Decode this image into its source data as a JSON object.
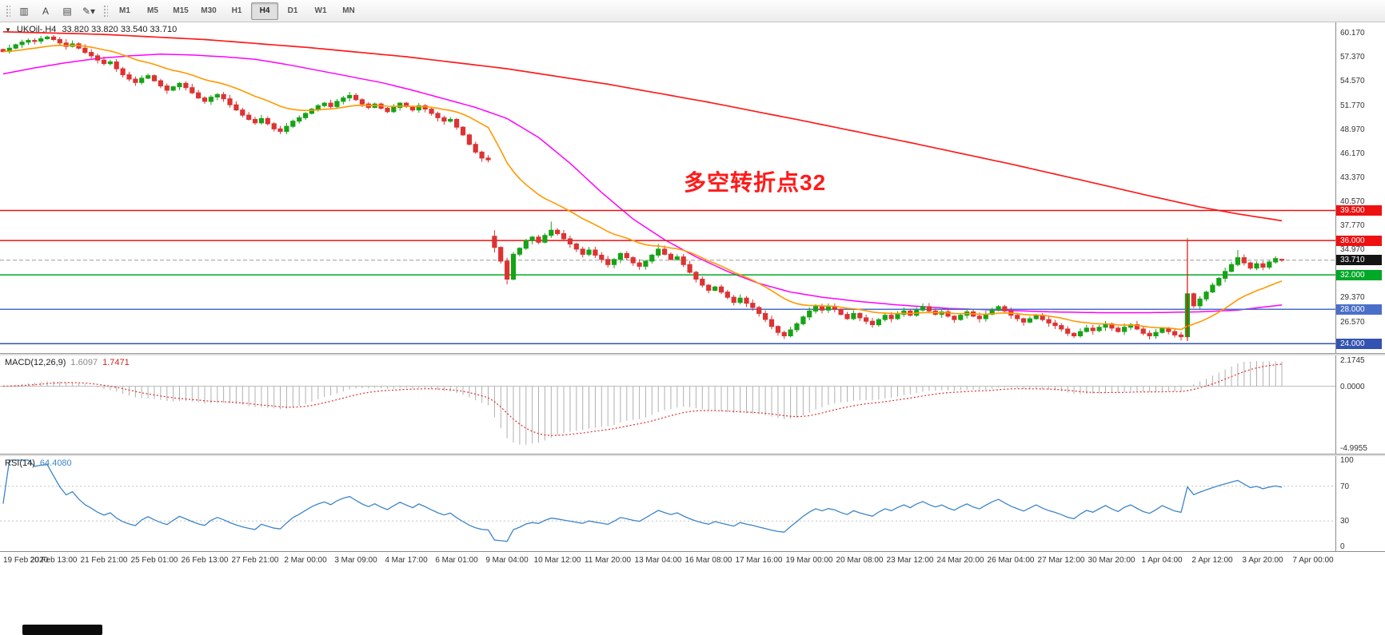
{
  "toolbar": {
    "tools": [
      {
        "name": "chart-window-icon",
        "glyph": "▥"
      },
      {
        "name": "text-tool",
        "glyph": "A"
      },
      {
        "name": "label-tool",
        "glyph": "▤"
      },
      {
        "name": "draw-tools-dropdown",
        "glyph": "✎▾"
      }
    ],
    "timeframes": [
      "M1",
      "M5",
      "M15",
      "M30",
      "H1",
      "H4",
      "D1",
      "W1",
      "MN"
    ],
    "active_timeframe": "H4"
  },
  "chart_header": {
    "collapse_glyph": "▼",
    "title": "UKOil-,H4",
    "ohlc": "33.820 33.820 33.540 33.710"
  },
  "annotation": {
    "text": "多空转折点32",
    "color": "#ff1a1a",
    "bar": 108,
    "price": 44.8
  },
  "macd_label": {
    "name": "MACD(12,26,9)",
    "value": "1.6097",
    "signal": "1.7471"
  },
  "rsi_label": {
    "name": "RSI(14)",
    "value": "64.4080"
  },
  "chart_data": {
    "type": "candlestick",
    "symbol": "UKOil-",
    "timeframe": "H4",
    "title": "UKOil-,H4",
    "ohlc_display": {
      "open": "33.820",
      "high": "33.820",
      "low": "33.540",
      "close": "33.710"
    },
    "ylim": [
      22.9,
      61.4
    ],
    "slots": 212,
    "label_every": 8,
    "colors": {
      "up": "#17a317",
      "down": "#dd3333"
    },
    "y_ticks": [
      "60.170",
      "57.370",
      "54.570",
      "51.770",
      "48.970",
      "46.170",
      "43.370",
      "40.570",
      "37.770",
      "34.970",
      "29.370",
      "26.570"
    ],
    "x_labels": [
      "19 Feb 2020",
      "20 Feb 13:00",
      "21 Feb 21:00",
      "25 Feb 01:00",
      "26 Feb 13:00",
      "27 Feb 21:00",
      "2 Mar 00:00",
      "3 Mar 09:00",
      "4 Mar 17:00",
      "6 Mar 01:00",
      "9 Mar 04:00",
      "10 Mar 12:00",
      "11 Mar 20:00",
      "13 Mar 04:00",
      "16 Mar 08:00",
      "17 Mar 16:00",
      "19 Mar 00:00",
      "20 Mar 08:00",
      "23 Mar 12:00",
      "24 Mar 20:00",
      "26 Mar 04:00",
      "27 Mar 12:00",
      "30 Mar 20:00",
      "1 Apr 04:00",
      "2 Apr 12:00",
      "3 Apr 20:00",
      "7 Apr 00:00"
    ],
    "closes": [
      58.0,
      58.4,
      58.8,
      59.1,
      59.3,
      59.2,
      59.5,
      59.7,
      59.4,
      59.0,
      58.6,
      58.9,
      58.4,
      57.9,
      57.5,
      57.0,
      56.6,
      56.8,
      56.0,
      55.3,
      54.8,
      54.4,
      54.9,
      55.2,
      54.6,
      54.0,
      53.5,
      53.9,
      54.3,
      53.8,
      53.2,
      52.6,
      52.2,
      52.7,
      53.0,
      52.5,
      51.8,
      51.2,
      50.6,
      50.1,
      49.7,
      50.2,
      49.6,
      49.0,
      48.7,
      49.3,
      49.9,
      50.3,
      50.8,
      51.3,
      51.7,
      52.0,
      51.6,
      52.2,
      52.6,
      52.9,
      52.4,
      51.9,
      51.5,
      51.9,
      51.4,
      51.0,
      51.5,
      52.0,
      51.6,
      51.2,
      51.7,
      51.3,
      50.8,
      50.3,
      49.9,
      50.1,
      49.2,
      48.3,
      47.2,
      46.3,
      45.6,
      45.4,
      35.2,
      33.6,
      31.5,
      34.4,
      35.1,
      36.0,
      36.4,
      35.8,
      36.6,
      37.2,
      36.8,
      36.2,
      35.6,
      35.0,
      34.4,
      34.9,
      34.3,
      33.8,
      33.2,
      33.8,
      34.5,
      34.0,
      33.4,
      33.0,
      33.6,
      34.3,
      35.0,
      34.4,
      33.8,
      34.1,
      33.2,
      32.3,
      31.5,
      30.8,
      30.2,
      30.6,
      30.0,
      29.4,
      28.8,
      29.3,
      28.7,
      28.2,
      27.5,
      26.8,
      26.0,
      25.3,
      24.9,
      25.6,
      26.3,
      27.1,
      27.8,
      28.4,
      27.9,
      28.3,
      28.0,
      27.4,
      26.9,
      27.5,
      27.0,
      26.6,
      26.2,
      26.8,
      27.3,
      26.9,
      27.4,
      27.8,
      27.3,
      27.9,
      28.3,
      27.8,
      27.4,
      27.7,
      27.2,
      26.8,
      27.3,
      27.7,
      27.2,
      26.9,
      27.4,
      27.9,
      28.3,
      27.8,
      27.3,
      26.9,
      26.5,
      26.9,
      27.3,
      26.8,
      26.4,
      26.1,
      25.7,
      25.2,
      24.9,
      25.4,
      25.8,
      25.5,
      25.9,
      26.3,
      25.8,
      25.4,
      25.9,
      26.2,
      25.7,
      25.2,
      24.9,
      25.3,
      25.8,
      25.4,
      25.0,
      24.8,
      29.8,
      28.4,
      29.2,
      30.0,
      30.8,
      31.6,
      32.4,
      33.2,
      34.0,
      33.4,
      32.8,
      33.3,
      32.9,
      33.5,
      33.9,
      33.71
    ],
    "bar_overrides": {
      "78": [
        36.5,
        37.2,
        34.6,
        35.2
      ],
      "80": [
        33.6,
        34.0,
        30.9,
        31.5
      ],
      "87": [
        36.6,
        38.2,
        36.3,
        37.2
      ],
      "104": [
        34.3,
        35.6,
        34.0,
        35.0
      ],
      "124": [
        25.3,
        25.5,
        24.55,
        24.9
      ],
      "188": [
        24.8,
        36.3,
        24.5,
        29.8
      ],
      "196": [
        33.2,
        34.9,
        33.0,
        34.0
      ],
      "203": [
        33.82,
        33.82,
        33.54,
        33.71
      ]
    },
    "levels": [
      {
        "price": 39.5,
        "label": "39.500",
        "color": "#ee1111"
      },
      {
        "price": 36.0,
        "label": "36.000",
        "color": "#ee1111"
      },
      {
        "price": 32.0,
        "label": "32.000",
        "color": "#00a828"
      },
      {
        "price": 28.0,
        "label": "28.000",
        "color": "#4a6fc8"
      },
      {
        "price": 24.0,
        "label": "24.000",
        "color": "#3353b0"
      }
    ],
    "current_price": {
      "price": 33.71,
      "label": "33.710",
      "color": "#141414"
    },
    "moving_averages": {
      "orange": {
        "type": "ema",
        "period": 20,
        "color": "#ff9900"
      },
      "magenta": {
        "color": "#ff00ff",
        "anchors": [
          [
            0,
            55.4
          ],
          [
            5,
            56.1
          ],
          [
            10,
            56.7
          ],
          [
            15,
            57.2
          ],
          [
            20,
            57.5
          ],
          [
            25,
            57.7
          ],
          [
            30,
            57.6
          ],
          [
            35,
            57.4
          ],
          [
            40,
            57.1
          ],
          [
            45,
            56.5
          ],
          [
            50,
            55.8
          ],
          [
            55,
            55.1
          ],
          [
            60,
            54.4
          ],
          [
            65,
            53.5
          ],
          [
            70,
            52.5
          ],
          [
            75,
            51.5
          ],
          [
            80,
            50.2
          ],
          [
            85,
            48.0
          ],
          [
            90,
            45.0
          ],
          [
            95,
            41.6
          ],
          [
            100,
            38.5
          ],
          [
            105,
            36.1
          ],
          [
            110,
            34.1
          ],
          [
            115,
            32.4
          ],
          [
            120,
            31.0
          ],
          [
            125,
            30.0
          ],
          [
            130,
            29.4
          ],
          [
            136,
            28.9
          ],
          [
            142,
            28.5
          ],
          [
            150,
            28.1
          ],
          [
            158,
            27.9
          ],
          [
            166,
            27.7
          ],
          [
            174,
            27.6
          ],
          [
            182,
            27.6
          ],
          [
            190,
            27.7
          ],
          [
            196,
            27.9
          ],
          [
            203,
            28.5
          ]
        ]
      },
      "red": {
        "color": "#ff1a1a",
        "anchors": [
          [
            0,
            60.3
          ],
          [
            16,
            60.0
          ],
          [
            32,
            59.4
          ],
          [
            48,
            58.5
          ],
          [
            64,
            57.4
          ],
          [
            80,
            56.0
          ],
          [
            96,
            54.2
          ],
          [
            112,
            52.1
          ],
          [
            128,
            49.8
          ],
          [
            144,
            47.4
          ],
          [
            160,
            44.9
          ],
          [
            172,
            42.9
          ],
          [
            182,
            41.2
          ],
          [
            190,
            39.9
          ],
          [
            196,
            39.1
          ],
          [
            203,
            38.3
          ]
        ]
      }
    },
    "vline": {
      "bar": 188,
      "from": 24.3,
      "to": 36.0,
      "color": "#ee1111"
    },
    "macd": {
      "params": [
        12,
        26,
        9
      ],
      "ticks": [
        "2.1745",
        "0.0000",
        "-4.9955"
      ],
      "ylim": [
        -4.9955,
        2.1745
      ]
    },
    "rsi": {
      "period": 14,
      "ticks": [
        "100",
        "70",
        "30",
        "0"
      ],
      "levels": [
        70,
        30
      ]
    }
  }
}
